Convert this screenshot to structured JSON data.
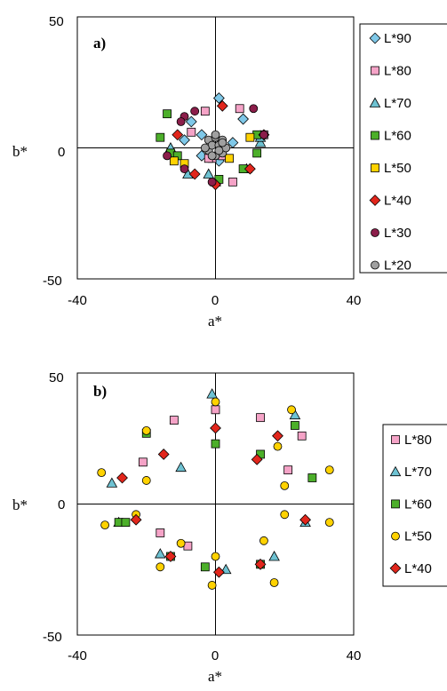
{
  "colors": {
    "L90": "#7fc8e8",
    "L80": "#f5a3c7",
    "L70": "#6ec2d2",
    "L60": "#4caf2a",
    "L50": "#ffd200",
    "L40": "#e1261c",
    "L30": "#8b1e4a",
    "L20": "#a0a0a0"
  },
  "chart_data": [
    {
      "type": "scatter",
      "title": "",
      "panel_label": "a)",
      "xlabel": "a*",
      "ylabel": "b*",
      "xlim": [
        -40,
        40
      ],
      "ylim": [
        -50,
        50
      ],
      "xticks": [
        "-40",
        "0",
        "40"
      ],
      "yticks": [
        "50",
        "0",
        "-50"
      ],
      "grid": false,
      "legend_position": "right",
      "series": [
        {
          "name": "L*90",
          "marker": "diamond",
          "color": "L90",
          "x": [
            -7,
            1,
            -4,
            -9,
            -4,
            8,
            5,
            1
          ],
          "y": [
            10,
            19,
            5,
            3,
            -3,
            11,
            2,
            -5
          ]
        },
        {
          "name": "L*80",
          "marker": "square",
          "color": "L80",
          "x": [
            -3,
            7,
            14,
            -7,
            5,
            -1,
            2,
            -2
          ],
          "y": [
            14,
            15,
            5,
            6,
            -13,
            -4,
            -3,
            -4
          ]
        },
        {
          "name": "L*70",
          "marker": "triangle",
          "color": "L70",
          "x": [
            -13,
            13,
            -8,
            13,
            0,
            9,
            -2
          ],
          "y": [
            0,
            2,
            -10,
            4,
            -13,
            -8,
            -10
          ]
        },
        {
          "name": "L*60",
          "marker": "square",
          "color": "L60",
          "x": [
            -14,
            -16,
            -13,
            12,
            1,
            8,
            -11,
            12
          ],
          "y": [
            13,
            4,
            -2,
            5,
            -12,
            -8,
            -3,
            -2
          ]
        },
        {
          "name": "L*50",
          "marker": "square",
          "color": "L50",
          "x": [
            -12,
            -9,
            4,
            10
          ],
          "y": [
            -5,
            -6,
            -4,
            4
          ]
        },
        {
          "name": "L*40",
          "marker": "diamond",
          "color": "L40",
          "x": [
            2,
            -11,
            14,
            -6,
            0,
            10
          ],
          "y": [
            16,
            5,
            5,
            -10,
            -14,
            -8
          ]
        },
        {
          "name": "L*30",
          "marker": "circle",
          "color": "L30",
          "x": [
            -6,
            11,
            -9,
            -10,
            -9,
            -14,
            14,
            -1
          ],
          "y": [
            14,
            15,
            12,
            10,
            -8,
            -3,
            5,
            -13
          ]
        },
        {
          "name": "L*20",
          "marker": "circle",
          "color": "L20",
          "x": [
            -2,
            0,
            2,
            -2,
            0,
            2,
            -1,
            1,
            -3,
            3,
            0,
            -1,
            1,
            2
          ],
          "y": [
            3,
            4,
            3,
            -1,
            -3,
            -2,
            1,
            1,
            0,
            0,
            5,
            -3,
            -1,
            2
          ]
        }
      ]
    },
    {
      "type": "scatter",
      "title": "",
      "panel_label": "b)",
      "xlabel": "a*",
      "ylabel": "b*",
      "xlim": [
        -40,
        40
      ],
      "ylim": [
        -50,
        50
      ],
      "xticks": [
        "-40",
        "0",
        "40"
      ],
      "yticks": [
        "50",
        "0",
        "-50"
      ],
      "grid": false,
      "legend_position": "right",
      "series": [
        {
          "name": "L*80",
          "marker": "square",
          "color": "L80",
          "x": [
            -12,
            0,
            13,
            -21,
            -16,
            -8,
            21,
            25
          ],
          "y": [
            32,
            36,
            33,
            16,
            -11,
            -16,
            13,
            26
          ]
        },
        {
          "name": "L*70",
          "marker": "triangle",
          "color": "L70",
          "x": [
            -1,
            23,
            -10,
            -30,
            -28,
            -16,
            3,
            17,
            26
          ],
          "y": [
            42,
            34,
            14,
            8,
            -7,
            -19,
            -25,
            -20,
            -7
          ]
        },
        {
          "name": "L*60",
          "marker": "square",
          "color": "L60",
          "x": [
            0,
            23,
            -20,
            -28,
            -26,
            -13,
            -3,
            13,
            28,
            13
          ],
          "y": [
            23,
            30,
            27,
            -7,
            -7,
            -20,
            -24,
            -23,
            10,
            19
          ]
        },
        {
          "name": "L*50",
          "marker": "circle",
          "color": "L50",
          "x": [
            0,
            -20,
            22,
            -33,
            -20,
            -32,
            -23,
            -10,
            -16,
            -1,
            14,
            17,
            20,
            20,
            33,
            33,
            18,
            0
          ],
          "y": [
            39,
            28,
            36,
            12,
            9,
            -8,
            -4,
            -15,
            -24,
            -31,
            -14,
            -30,
            -4,
            7,
            13,
            -7,
            22,
            -20
          ]
        },
        {
          "name": "L*40",
          "marker": "diamond",
          "color": "L40",
          "x": [
            0,
            18,
            -15,
            -27,
            -23,
            -13,
            1,
            13,
            26,
            12
          ],
          "y": [
            29,
            26,
            19,
            10,
            -6,
            -20,
            -26,
            -23,
            -6,
            17
          ]
        }
      ]
    }
  ]
}
